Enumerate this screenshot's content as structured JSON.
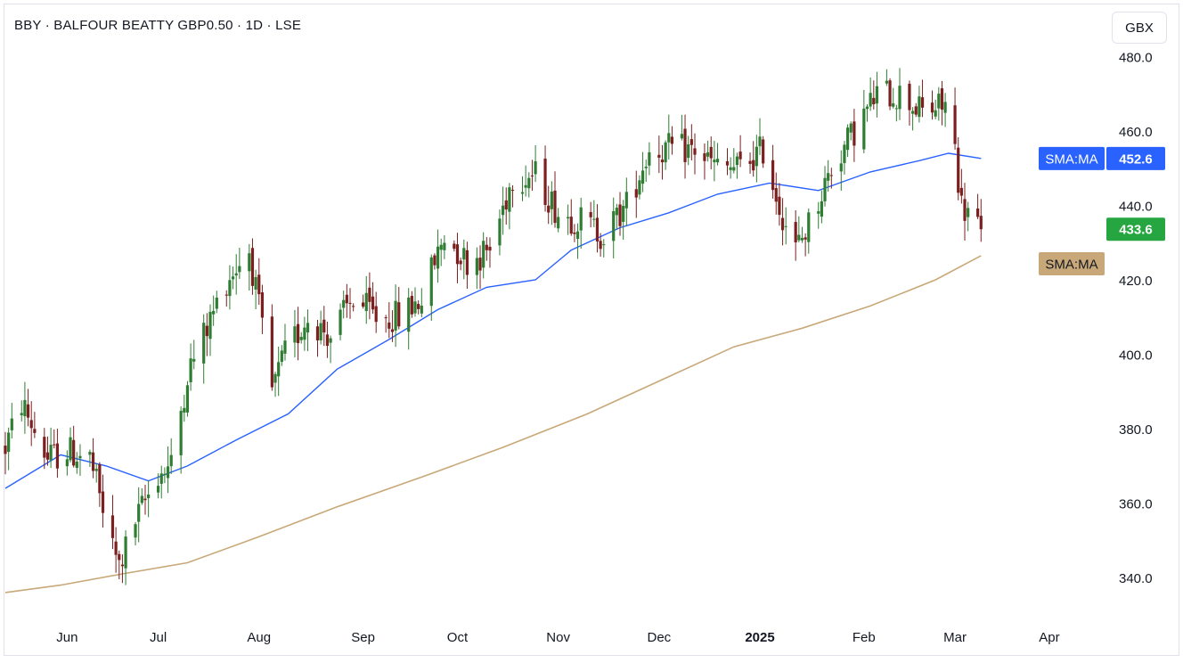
{
  "header": {
    "title": "BBY · BALFOUR BEATTY GBP0.50 · 1D · LSE",
    "currency": "GBX"
  },
  "colors": {
    "up": "#2e7d32",
    "down": "#7b1f1f",
    "sma50": "#2962ff",
    "sma200": "#c8a878",
    "last_price_bg": "#26a641",
    "sma50_label_bg": "#2962ff",
    "sma200_label_bg": "#c8a878"
  },
  "chart_data": {
    "type": "candlestick",
    "title": "BBY · BALFOUR BEATTY GBP0.50 · 1D · LSE",
    "ylim": [
      330,
      482
    ],
    "y_ticks": [
      "480.0",
      "460.0",
      "440.0",
      "420.0",
      "400.0",
      "380.0",
      "360.0",
      "340.0"
    ],
    "y_tick_values": [
      480,
      460,
      440,
      420,
      400,
      380,
      360,
      340
    ],
    "x_range": [
      "2024-05-15",
      "2025-04-18"
    ],
    "x_ticks": [
      {
        "label": "Jun",
        "date": "2024-06-03",
        "bold": false
      },
      {
        "label": "Jul",
        "date": "2024-07-01",
        "bold": false
      },
      {
        "label": "Aug",
        "date": "2024-08-01",
        "bold": false
      },
      {
        "label": "Sep",
        "date": "2024-09-02",
        "bold": false
      },
      {
        "label": "Oct",
        "date": "2024-10-01",
        "bold": false
      },
      {
        "label": "Nov",
        "date": "2024-11-01",
        "bold": false
      },
      {
        "label": "Dec",
        "date": "2024-12-02",
        "bold": false
      },
      {
        "label": "2025",
        "date": "2025-01-02",
        "bold": true
      },
      {
        "label": "Feb",
        "date": "2025-02-03",
        "bold": false
      },
      {
        "label": "Mar",
        "date": "2025-03-03",
        "bold": false
      },
      {
        "label": "Apr",
        "date": "2025-04-01",
        "bold": false
      }
    ],
    "anchors": [
      {
        "date": "2024-05-15",
        "price": 375
      },
      {
        "date": "2024-05-20",
        "price": 387
      },
      {
        "date": "2024-05-28",
        "price": 372
      },
      {
        "date": "2024-06-03",
        "price": 374
      },
      {
        "date": "2024-06-10",
        "price": 372
      },
      {
        "date": "2024-06-17",
        "price": 348
      },
      {
        "date": "2024-06-19",
        "price": 343
      },
      {
        "date": "2024-06-24",
        "price": 355
      },
      {
        "date": "2024-07-01",
        "price": 368
      },
      {
        "date": "2024-07-05",
        "price": 370
      },
      {
        "date": "2024-07-10",
        "price": 395
      },
      {
        "date": "2024-07-15",
        "price": 405
      },
      {
        "date": "2024-07-22",
        "price": 420
      },
      {
        "date": "2024-07-29",
        "price": 428
      },
      {
        "date": "2024-08-05",
        "price": 390
      },
      {
        "date": "2024-08-09",
        "price": 400
      },
      {
        "date": "2024-08-16",
        "price": 410
      },
      {
        "date": "2024-08-23",
        "price": 405
      },
      {
        "date": "2024-08-30",
        "price": 415
      },
      {
        "date": "2024-09-06",
        "price": 410
      },
      {
        "date": "2024-09-13",
        "price": 410
      },
      {
        "date": "2024-09-20",
        "price": 415
      },
      {
        "date": "2024-09-27",
        "price": 432
      },
      {
        "date": "2024-10-04",
        "price": 425
      },
      {
        "date": "2024-10-11",
        "price": 428
      },
      {
        "date": "2024-10-18",
        "price": 448
      },
      {
        "date": "2024-10-25",
        "price": 448
      },
      {
        "date": "2024-11-01",
        "price": 438
      },
      {
        "date": "2024-11-08",
        "price": 436
      },
      {
        "date": "2024-11-15",
        "price": 432
      },
      {
        "date": "2024-11-22",
        "price": 440
      },
      {
        "date": "2024-11-29",
        "price": 455
      },
      {
        "date": "2024-12-06",
        "price": 455
      },
      {
        "date": "2024-12-13",
        "price": 455
      },
      {
        "date": "2024-12-20",
        "price": 450
      },
      {
        "date": "2024-12-27",
        "price": 450
      },
      {
        "date": "2025-01-03",
        "price": 455
      },
      {
        "date": "2025-01-08",
        "price": 440
      },
      {
        "date": "2025-01-13",
        "price": 428
      },
      {
        "date": "2025-01-17",
        "price": 435
      },
      {
        "date": "2025-01-24",
        "price": 450
      },
      {
        "date": "2025-01-31",
        "price": 460
      },
      {
        "date": "2025-02-07",
        "price": 470
      },
      {
        "date": "2025-02-14",
        "price": 470
      },
      {
        "date": "2025-02-21",
        "price": 465
      },
      {
        "date": "2025-02-28",
        "price": 467
      },
      {
        "date": "2025-03-03",
        "price": 455
      },
      {
        "date": "2025-03-05",
        "price": 440
      },
      {
        "date": "2025-03-07",
        "price": 438
      },
      {
        "date": "2025-03-11",
        "price": 433.6
      }
    ],
    "series": [
      {
        "name": "SMA:MA",
        "color": "#2962ff",
        "last": 452.6,
        "label_value": "452.6",
        "points": [
          {
            "date": "2024-05-15",
            "value": 364
          },
          {
            "date": "2024-06-01",
            "value": 373
          },
          {
            "date": "2024-06-15",
            "value": 370
          },
          {
            "date": "2024-06-28",
            "value": 366
          },
          {
            "date": "2024-07-10",
            "value": 370
          },
          {
            "date": "2024-07-25",
            "value": 377
          },
          {
            "date": "2024-08-10",
            "value": 384
          },
          {
            "date": "2024-08-25",
            "value": 396
          },
          {
            "date": "2024-09-10",
            "value": 404
          },
          {
            "date": "2024-09-25",
            "value": 412
          },
          {
            "date": "2024-10-10",
            "value": 418
          },
          {
            "date": "2024-10-25",
            "value": 420
          },
          {
            "date": "2024-11-05",
            "value": 428
          },
          {
            "date": "2024-11-20",
            "value": 434
          },
          {
            "date": "2024-12-05",
            "value": 438
          },
          {
            "date": "2024-12-20",
            "value": 443
          },
          {
            "date": "2025-01-05",
            "value": 446
          },
          {
            "date": "2025-01-20",
            "value": 444
          },
          {
            "date": "2025-02-05",
            "value": 449
          },
          {
            "date": "2025-02-20",
            "value": 452
          },
          {
            "date": "2025-03-01",
            "value": 454
          },
          {
            "date": "2025-03-11",
            "value": 452.6
          }
        ]
      },
      {
        "name": "SMA:MA",
        "color": "#c8a878",
        "last": 426.5,
        "label_value": "",
        "points": [
          {
            "date": "2024-05-15",
            "value": 336
          },
          {
            "date": "2024-06-01",
            "value": 338
          },
          {
            "date": "2024-06-20",
            "value": 341
          },
          {
            "date": "2024-07-10",
            "value": 344
          },
          {
            "date": "2024-08-01",
            "value": 351
          },
          {
            "date": "2024-08-25",
            "value": 359
          },
          {
            "date": "2024-09-20",
            "value": 367
          },
          {
            "date": "2024-10-15",
            "value": 375
          },
          {
            "date": "2024-11-10",
            "value": 384
          },
          {
            "date": "2024-12-05",
            "value": 394
          },
          {
            "date": "2024-12-25",
            "value": 402
          },
          {
            "date": "2025-01-15",
            "value": 407
          },
          {
            "date": "2025-02-05",
            "value": 413
          },
          {
            "date": "2025-02-25",
            "value": 420
          },
          {
            "date": "2025-03-11",
            "value": 426.5
          }
        ]
      }
    ],
    "last_price": {
      "value": 433.6,
      "label": "433.6"
    }
  }
}
